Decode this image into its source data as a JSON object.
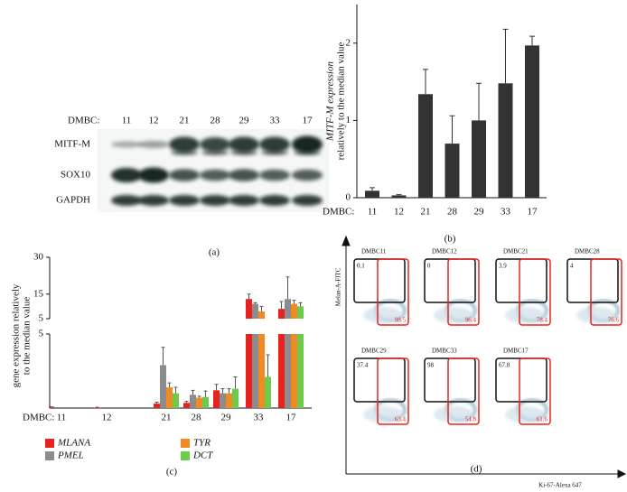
{
  "panel_a": {
    "caption": "(a)",
    "lane_label": "DMBC:",
    "lanes": [
      "11",
      "12",
      "21",
      "28",
      "29",
      "33",
      "17"
    ],
    "rows": [
      "MITF-M",
      "SOX10",
      "GAPDH"
    ]
  },
  "chart_data": [
    {
      "type": "bar",
      "caption": "(b)",
      "ylabel": [
        "MITF-M expression",
        "relatively to the median value"
      ],
      "x_prefix": "DMBC:",
      "categories": [
        "11",
        "12",
        "21",
        "28",
        "29",
        "33",
        "17"
      ],
      "values": [
        0.09,
        0.03,
        1.34,
        0.7,
        1.0,
        1.48,
        1.97
      ],
      "errors": [
        0.04,
        0.01,
        0.32,
        0.36,
        0.48,
        0.7,
        0.12
      ],
      "color": "#333333",
      "ylim": [
        0,
        2.5
      ],
      "yticks": [
        0,
        1,
        2
      ]
    },
    {
      "type": "broken_bar",
      "caption": "(c)",
      "ylabel": [
        "gene expression relatively",
        "to the median value"
      ],
      "x_prefix": "DMBC:",
      "categories": [
        "11",
        "12",
        "21",
        "28",
        "29",
        "33",
        "17"
      ],
      "series": [
        {
          "name": "MLANA",
          "color": "#e8231f",
          "values": [
            0.05,
            0.03,
            0.3,
            0.35,
            1.2,
            13,
            9
          ],
          "errors": [
            0.03,
            0.02,
            0.1,
            0.1,
            0.4,
            2,
            3
          ]
        },
        {
          "name": "PMEL",
          "color": "#8c8c8c",
          "values": [
            0,
            0,
            2.9,
            0.9,
            1.0,
            11,
            13
          ],
          "errors": [
            0,
            0,
            1.2,
            0.3,
            0.3,
            0.5,
            9
          ]
        },
        {
          "name": "TYR",
          "color": "#f08a24",
          "values": [
            0,
            0,
            1.4,
            0.7,
            1.0,
            8,
            11
          ],
          "errors": [
            0,
            0,
            0.3,
            0.1,
            0.3,
            2,
            1.5
          ]
        },
        {
          "name": "DCT",
          "color": "#6ccb4a",
          "values": [
            0,
            0,
            1.0,
            0.75,
            1.3,
            2.1,
            10
          ],
          "errors": [
            0,
            0,
            0.4,
            0.4,
            0.8,
            1.5,
            1.5
          ]
        }
      ],
      "ylim_lower": [
        0,
        5
      ],
      "yticks_lower": [
        5
      ],
      "ylim_upper": [
        5,
        30
      ],
      "yticks_upper": [
        5,
        15,
        30
      ]
    }
  ],
  "panel_d": {
    "caption": "(d)",
    "ylabel": "Melan-A-FITC",
    "xlabel": "Ki-67-Alexa 647",
    "plots": [
      {
        "title": "DMBC11",
        "upper_left": "0.1",
        "lower_right": "98.5"
      },
      {
        "title": "DMBC12",
        "upper_left": "0",
        "lower_right": "96.4"
      },
      {
        "title": "DMBC21",
        "upper_left": "3.9",
        "lower_right": "78.4"
      },
      {
        "title": "DMBC28",
        "upper_left": "4",
        "lower_right": "76.6"
      },
      {
        "title": "DMBC29",
        "upper_left": "37.4",
        "lower_right": "63.4"
      },
      {
        "title": "DMBC33",
        "upper_left": "98",
        "lower_right": "54.8"
      },
      {
        "title": "DMBC17",
        "upper_left": "67.8",
        "lower_right": "61.6"
      }
    ]
  }
}
